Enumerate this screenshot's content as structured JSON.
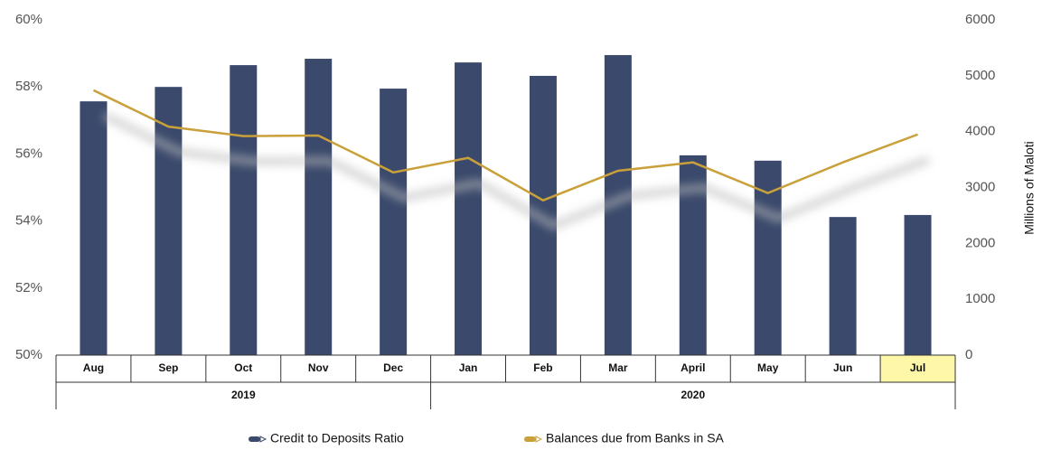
{
  "chart_data": {
    "type": "bar_line",
    "categories": [
      "Aug",
      "Sep",
      "Oct",
      "Nov",
      "Dec",
      "Jan",
      "Feb",
      "Mar",
      "April",
      "May",
      "Jun",
      "Jul"
    ],
    "category_groups": [
      "2019",
      "2019",
      "2019",
      "2019",
      "2019",
      "2020",
      "2020",
      "2020",
      "2020",
      "2020",
      "2020",
      "2020"
    ],
    "highlight_category": "Jul",
    "highlight_color": "#fff7a8",
    "series": [
      {
        "name": "Credit to Deposits Ratio",
        "type": "bar",
        "color": "#3b4a6c",
        "axis": "y",
        "values": [
          57.57,
          58.0,
          58.65,
          58.84,
          57.95,
          58.73,
          58.33,
          58.95,
          55.96,
          55.8,
          54.12,
          54.18
        ]
      },
      {
        "name": "Balances due from Banks in SA",
        "type": "line",
        "color": "#c9a03a",
        "axis": "y2",
        "values": [
          4740,
          4090,
          3920,
          3930,
          3270,
          3530,
          2770,
          3300,
          3450,
          2900,
          3450,
          3950
        ]
      }
    ],
    "ylim": [
      50,
      60
    ],
    "yticks": [
      {
        "value": 50,
        "label": "50%"
      },
      {
        "value": 52,
        "label": "52%"
      },
      {
        "value": 54,
        "label": "54%"
      },
      {
        "value": 56,
        "label": "56%"
      },
      {
        "value": 58,
        "label": "58%"
      },
      {
        "value": 60,
        "label": "60%"
      }
    ],
    "y2lim": [
      0,
      6000
    ],
    "y2ticks": [
      0,
      1000,
      2000,
      3000,
      4000,
      5000,
      6000
    ],
    "y2label": "Millions of Maloti",
    "legend": "bottom"
  }
}
